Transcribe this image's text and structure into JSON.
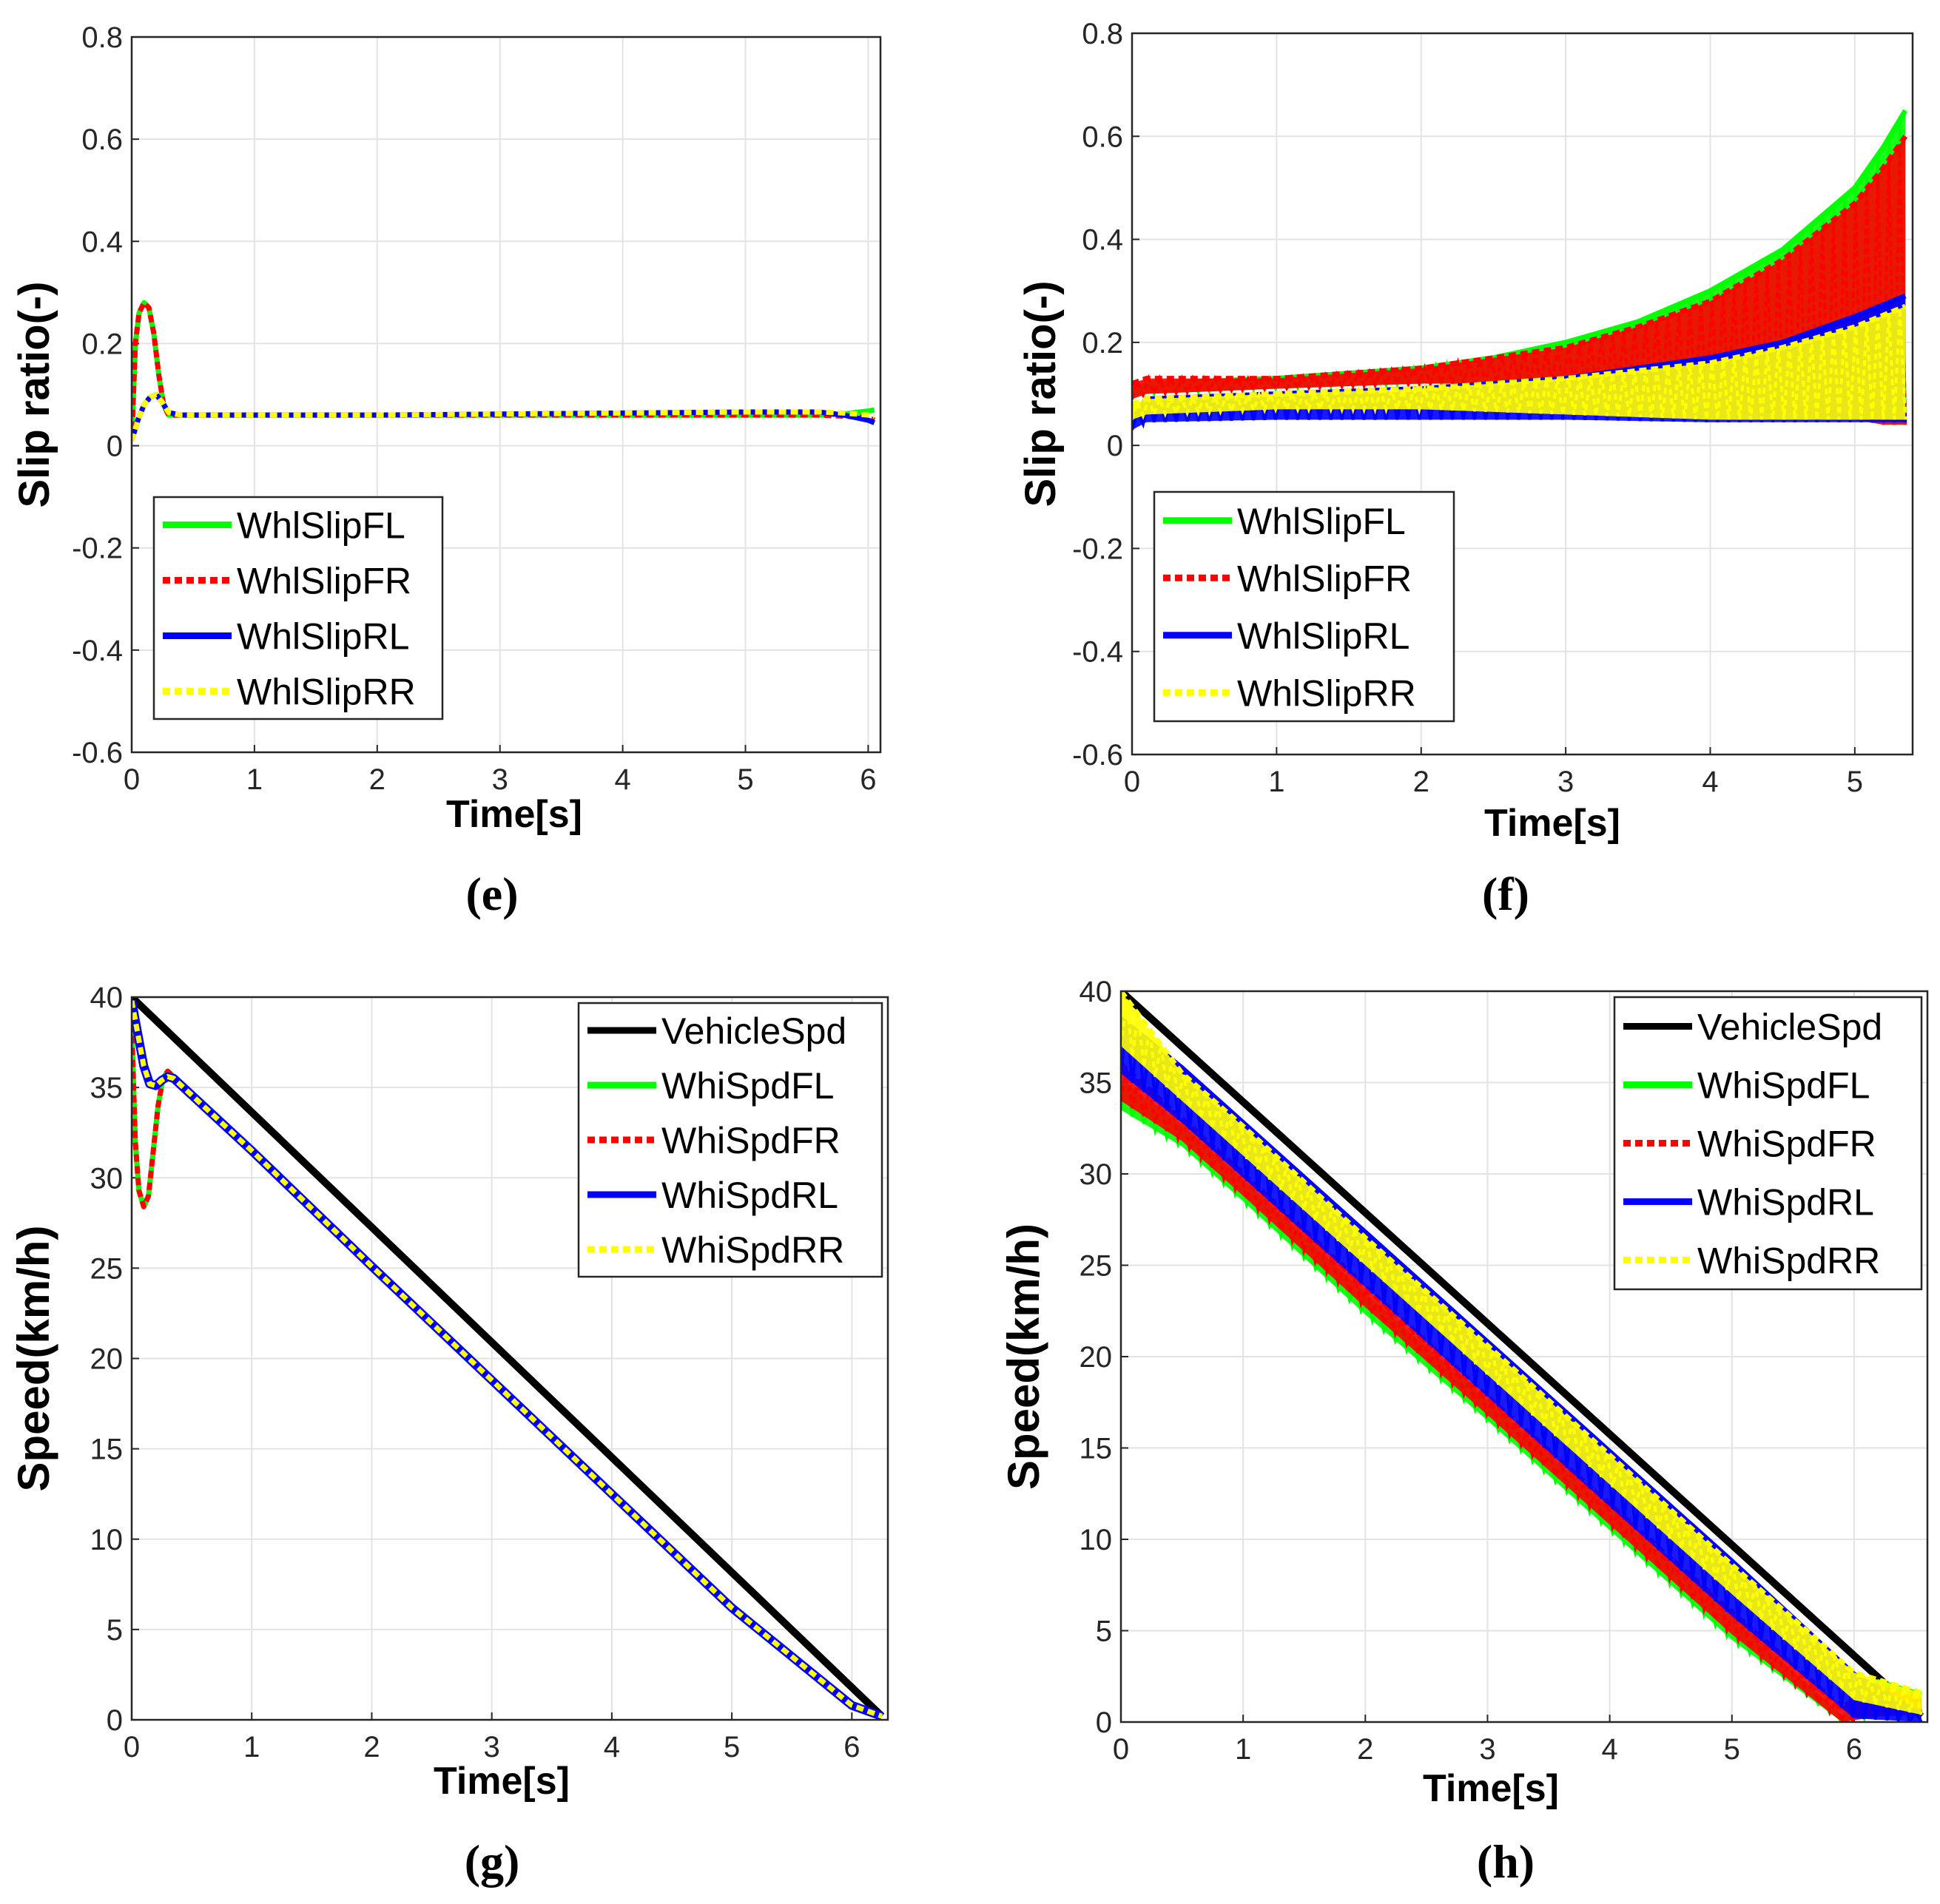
{
  "chart_data": [
    {
      "panel": "e",
      "type": "line",
      "caption": "(e)",
      "xlabel": "Time[s]",
      "ylabel": "Slip ratio(-)",
      "xlim": [
        0,
        6.1
      ],
      "ylim": [
        -0.6,
        0.8
      ],
      "xticks": [
        "0",
        "1",
        "2",
        "3",
        "4",
        "5",
        "6"
      ],
      "yticks": [
        "-0.6",
        "-0.4",
        "-0.2",
        "0",
        "0.2",
        "0.4",
        "0.6",
        "0.8"
      ],
      "grid": true,
      "legend_position": "bottom-left",
      "series": [
        {
          "name": "WhlSlipFL",
          "color": "#00ff00",
          "style": "solid",
          "x": [
            0,
            0.03,
            0.06,
            0.1,
            0.14,
            0.18,
            0.22,
            0.26,
            0.3,
            0.4,
            0.6,
            1,
            2,
            3,
            4,
            5,
            5.6,
            5.8,
            6,
            6.05
          ],
          "y": [
            0.01,
            0.2,
            0.26,
            0.28,
            0.27,
            0.22,
            0.14,
            0.08,
            0.06,
            0.06,
            0.06,
            0.06,
            0.06,
            0.06,
            0.06,
            0.06,
            0.06,
            0.062,
            0.068,
            0.07
          ]
        },
        {
          "name": "WhlSlipFR",
          "color": "#ff0000",
          "style": "dotted",
          "x": [
            0,
            0.03,
            0.06,
            0.1,
            0.14,
            0.18,
            0.22,
            0.26,
            0.3,
            0.4,
            0.6,
            1,
            2,
            3,
            4,
            5,
            5.6,
            5.8,
            6,
            6.05
          ],
          "y": [
            0.01,
            0.2,
            0.26,
            0.28,
            0.27,
            0.22,
            0.14,
            0.08,
            0.06,
            0.06,
            0.06,
            0.06,
            0.06,
            0.06,
            0.06,
            0.06,
            0.06,
            0.058,
            0.055,
            0.05
          ]
        },
        {
          "name": "WhlSlipRL",
          "color": "#0000ff",
          "style": "solid",
          "x": [
            0,
            0.05,
            0.1,
            0.15,
            0.2,
            0.25,
            0.3,
            0.4,
            1,
            2,
            3,
            4,
            5,
            5.6,
            5.8,
            6,
            6.05
          ],
          "y": [
            0.01,
            0.05,
            0.08,
            0.095,
            0.1,
            0.085,
            0.065,
            0.06,
            0.06,
            0.06,
            0.062,
            0.064,
            0.066,
            0.066,
            0.06,
            0.05,
            0.045
          ]
        },
        {
          "name": "WhlSlipRR",
          "color": "#ffff00",
          "style": "dotted",
          "x": [
            0,
            0.05,
            0.1,
            0.15,
            0.2,
            0.25,
            0.3,
            0.4,
            1,
            2,
            3,
            4,
            5,
            5.6,
            5.8,
            6,
            6.05
          ],
          "y": [
            0.01,
            0.05,
            0.08,
            0.095,
            0.1,
            0.085,
            0.065,
            0.06,
            0.06,
            0.06,
            0.062,
            0.064,
            0.066,
            0.066,
            0.064,
            0.06,
            0.058
          ]
        }
      ]
    },
    {
      "panel": "f",
      "type": "line",
      "caption": "(f)",
      "xlabel": "Time[s]",
      "ylabel": "Slip ratio(-)",
      "xlim": [
        0,
        5.4
      ],
      "ylim": [
        -0.6,
        0.8
      ],
      "xticks": [
        "0",
        "1",
        "2",
        "3",
        "4",
        "5"
      ],
      "yticks": [
        "-0.6",
        "-0.4",
        "-0.2",
        "0",
        "0.2",
        "0.4",
        "0.6",
        "0.8"
      ],
      "grid": true,
      "legend_position": "bottom-left",
      "series": [
        {
          "name": "WhlSlipFL",
          "color": "#00ff00",
          "style": "solid",
          "x": [
            0,
            0.1,
            1,
            2,
            2.5,
            3,
            3.5,
            4,
            4.5,
            5,
            5.2,
            5.35
          ],
          "y": [
            0.1,
            0.12,
            0.13,
            0.15,
            0.17,
            0.2,
            0.24,
            0.3,
            0.38,
            0.5,
            0.58,
            0.65
          ],
          "y_low": [
            0.09,
            0.1,
            0.11,
            0.12,
            0.12,
            0.12,
            0.1,
            0.08,
            0.06,
            0.05,
            0.04,
            0.04
          ]
        },
        {
          "name": "WhlSlipFR",
          "color": "#ff0000",
          "style": "dotted",
          "x": [
            0,
            0.1,
            1,
            2,
            2.5,
            3,
            3.5,
            4,
            4.5,
            5,
            5.2,
            5.35
          ],
          "y": [
            0.12,
            0.13,
            0.13,
            0.15,
            0.17,
            0.19,
            0.23,
            0.28,
            0.36,
            0.47,
            0.54,
            0.6
          ],
          "y_low": [
            0.09,
            0.1,
            0.11,
            0.12,
            0.12,
            0.12,
            0.1,
            0.08,
            0.06,
            0.05,
            0.04,
            0.04
          ]
        },
        {
          "name": "WhlSlipRL",
          "color": "#0000ff",
          "style": "solid",
          "x": [
            0,
            0.1,
            1,
            2,
            3,
            4,
            4.5,
            5,
            5.35
          ],
          "y": [
            0.05,
            0.09,
            0.1,
            0.11,
            0.13,
            0.17,
            0.2,
            0.25,
            0.29
          ],
          "y_low": [
            0.03,
            0.045,
            0.05,
            0.05,
            0.05,
            0.045,
            0.045,
            0.045,
            0.045
          ]
        },
        {
          "name": "WhlSlipRR",
          "color": "#ffff00",
          "style": "dotted",
          "x": [
            0,
            0.1,
            1,
            2,
            3,
            4,
            4.5,
            5,
            5.35
          ],
          "y": [
            0.08,
            0.09,
            0.1,
            0.11,
            0.13,
            0.16,
            0.19,
            0.23,
            0.27
          ],
          "y_low": [
            0.05,
            0.06,
            0.07,
            0.07,
            0.06,
            0.05,
            0.05,
            0.05,
            0.05
          ]
        }
      ]
    },
    {
      "panel": "g",
      "type": "line",
      "caption": "(g)",
      "xlabel": "Time[s]",
      "ylabel": "Speed(km/h)",
      "xlim": [
        0,
        6.3
      ],
      "ylim": [
        0,
        40
      ],
      "xticks": [
        "0",
        "1",
        "2",
        "3",
        "4",
        "5",
        "6"
      ],
      "yticks": [
        "0",
        "5",
        "10",
        "15",
        "20",
        "25",
        "30",
        "35",
        "40"
      ],
      "grid": true,
      "legend_position": "top-right",
      "series": [
        {
          "name": "VehicleSpd",
          "color": "#000000",
          "style": "solid",
          "x": [
            0,
            6.25
          ],
          "y": [
            40,
            0.2
          ]
        },
        {
          "name": "WhiSpdFL",
          "color": "#00ff00",
          "style": "solid",
          "x": [
            0,
            0.03,
            0.06,
            0.1,
            0.14,
            0.18,
            0.22,
            0.26,
            0.3,
            0.35,
            1,
            2,
            3,
            4,
            5,
            6,
            6.25
          ],
          "y": [
            38.5,
            32,
            29.3,
            28.4,
            29,
            31.5,
            34,
            35.5,
            35.9,
            35.6,
            31.6,
            25.2,
            18.9,
            12.6,
            6.3,
            0.8,
            0.2
          ]
        },
        {
          "name": "WhiSpdFR",
          "color": "#ff0000",
          "style": "dotted",
          "x": [
            0,
            0.03,
            0.06,
            0.1,
            0.14,
            0.18,
            0.22,
            0.26,
            0.3,
            0.35,
            1,
            2,
            3,
            4,
            5,
            6,
            6.25
          ],
          "y": [
            38.5,
            32,
            29.3,
            28.4,
            29,
            31.5,
            34,
            35.5,
            35.9,
            35.6,
            31.6,
            25.2,
            18.9,
            12.6,
            6.3,
            0.8,
            0.2
          ]
        },
        {
          "name": "WhiSpdRL",
          "color": "#0000ff",
          "style": "solid",
          "x": [
            0,
            0.05,
            0.1,
            0.15,
            0.2,
            0.25,
            0.3,
            0.35,
            1,
            2,
            3,
            4,
            5,
            6,
            6.25
          ],
          "y": [
            39.8,
            38,
            36.2,
            35.2,
            35.1,
            35.4,
            35.6,
            35.5,
            31.5,
            25.1,
            18.8,
            12.5,
            6.2,
            0.8,
            0.2
          ]
        },
        {
          "name": "WhiSpdRR",
          "color": "#ffff00",
          "style": "dotted",
          "x": [
            0,
            0.05,
            0.1,
            0.15,
            0.2,
            0.25,
            0.3,
            0.35,
            1,
            2,
            3,
            4,
            5,
            6,
            6.25
          ],
          "y": [
            39.8,
            38,
            36.2,
            35.2,
            35.1,
            35.4,
            35.6,
            35.5,
            31.5,
            25.1,
            18.8,
            12.5,
            6.2,
            0.8,
            0.2
          ]
        }
      ]
    },
    {
      "panel": "h",
      "type": "line",
      "caption": "(h)",
      "xlabel": "Time[s]",
      "ylabel": "Speed(km/h)",
      "xlim": [
        0,
        6.6
      ],
      "ylim": [
        0,
        40
      ],
      "xticks": [
        "0",
        "1",
        "2",
        "3",
        "4",
        "5",
        "6"
      ],
      "yticks": [
        "0",
        "5",
        "10",
        "15",
        "20",
        "25",
        "30",
        "35",
        "40"
      ],
      "grid": true,
      "legend_position": "top-right",
      "series": [
        {
          "name": "VehicleSpd",
          "color": "#000000",
          "style": "solid",
          "x": [
            0,
            6.55
          ],
          "y": [
            40,
            0.3
          ]
        },
        {
          "name": "WhiSpdFL",
          "color": "#00ff00",
          "style": "solid",
          "x": [
            0,
            0.5,
            1,
            2,
            3,
            4,
            5,
            5.9,
            6.2,
            6.55
          ],
          "y": [
            35,
            32.5,
            29.5,
            23.3,
            17.4,
            11.5,
            5.6,
            0.2,
            2.2,
            1.5
          ],
          "y_low": [
            33.5,
            31.5,
            28.5,
            22.3,
            16.5,
            10.5,
            4.5,
            0,
            0.4,
            0.5
          ]
        },
        {
          "name": "WhiSpdFR",
          "color": "#ff0000",
          "style": "dotted",
          "x": [
            0,
            0.5,
            1,
            2,
            3,
            4,
            5,
            5.9,
            6.2,
            6.55
          ],
          "y": [
            36,
            33,
            30,
            23.8,
            17.8,
            11.9,
            6,
            0.8,
            2,
            1.3
          ],
          "y_low": [
            34,
            31.8,
            28.8,
            22.7,
            16.8,
            10.8,
            4.8,
            0,
            0.3,
            0.4
          ]
        },
        {
          "name": "WhiSpdRL",
          "color": "#0000ff",
          "style": "solid",
          "x": [
            0,
            0.5,
            1,
            2,
            3,
            4,
            5,
            6,
            6.55
          ],
          "y": [
            38.5,
            35.8,
            32.8,
            26.8,
            20.8,
            14.8,
            8.8,
            2.6,
            0.4
          ],
          "y_low": [
            35.5,
            32.8,
            29.8,
            23.8,
            17.8,
            11.8,
            5.8,
            0.2,
            0
          ]
        },
        {
          "name": "WhiSpdRR",
          "color": "#ffff00",
          "style": "dotted",
          "x": [
            0,
            0.5,
            1,
            2,
            3,
            4,
            5,
            6,
            6.55
          ],
          "y": [
            40,
            35.5,
            32.6,
            26.5,
            20.6,
            14.6,
            8.6,
            2.7,
            1.6
          ],
          "y_low": [
            37,
            34,
            31,
            25,
            19,
            13,
            7,
            1.2,
            0.4
          ]
        }
      ]
    }
  ]
}
